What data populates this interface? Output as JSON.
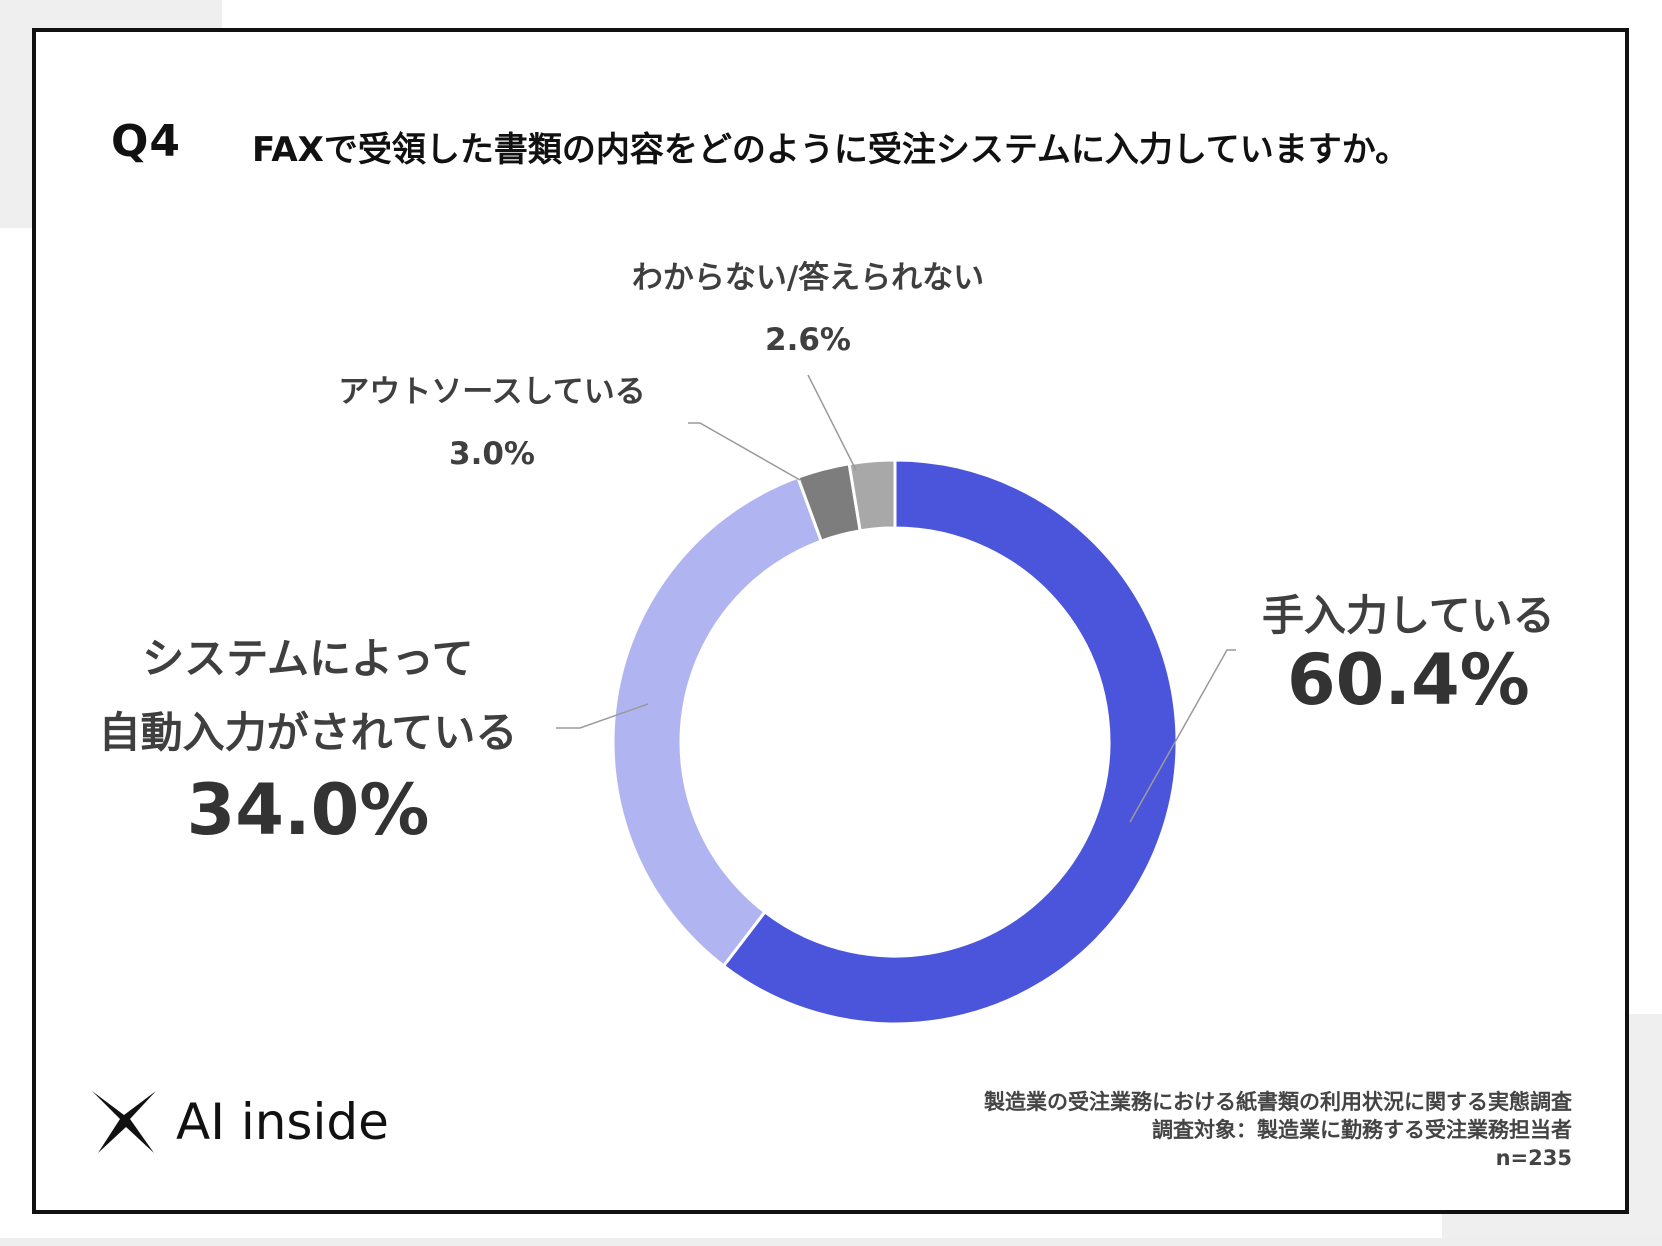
{
  "question": {
    "number": "Q4",
    "text": "FAXで受領した書類の内容をどのように受注システムに入力していますか。"
  },
  "chart_data": {
    "type": "pie",
    "categories": [
      "手入力している",
      "システムによって自動入力がされている",
      "アウトソースしている",
      "わからない/答えられない"
    ],
    "values": [
      60.4,
      34.0,
      3.0,
      2.6
    ],
    "labels": {
      "manual": {
        "line1": "手入力している",
        "value": "60.4%"
      },
      "auto": {
        "line1": "システムによって",
        "line2": "自動入力がされている",
        "value": "34.0%"
      },
      "outsource": {
        "line1": "アウトソースしている",
        "value": "3.0%"
      },
      "unknown": {
        "line1": "わからない/答えられない",
        "value": "2.6%"
      }
    },
    "colors": [
      "#4a55dc",
      "#b0b5f2",
      "#7d7d7d",
      "#a8a8a8"
    ]
  },
  "logo": {
    "text": "AI inside"
  },
  "source": {
    "line1": "製造業の受注業務における紙書類の利用状況に関する実態調査",
    "line2": "調査対象：製造業に勤務する受注業務担当者",
    "line3": "n=235"
  }
}
